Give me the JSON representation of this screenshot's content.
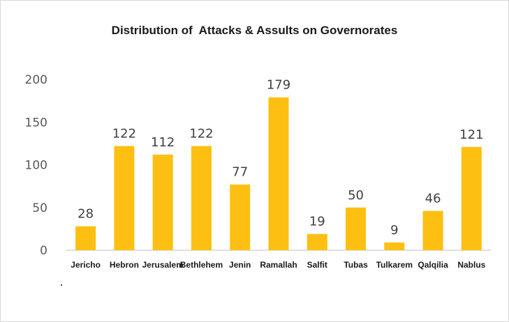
{
  "chart_data": {
    "type": "bar",
    "title": "Distribution of  Attacks & Assults on Governorates",
    "categories": [
      "Jericho",
      "Hebron",
      "Jerusalem",
      "Bethlehem",
      "Jenin",
      "Ramallah",
      "Salfit",
      "Tubas",
      "Tulkarem",
      "Qalqilia",
      "Nablus"
    ],
    "values": [
      28,
      122,
      112,
      122,
      77,
      179,
      19,
      50,
      9,
      46,
      121
    ],
    "yticks": [
      "0",
      "50",
      "100",
      "150",
      "200"
    ],
    "ylim": [
      0,
      200
    ],
    "xlabel": "",
    "ylabel": "",
    "grid": false,
    "bar_color": "#FDBF12",
    "data_labels": true
  }
}
